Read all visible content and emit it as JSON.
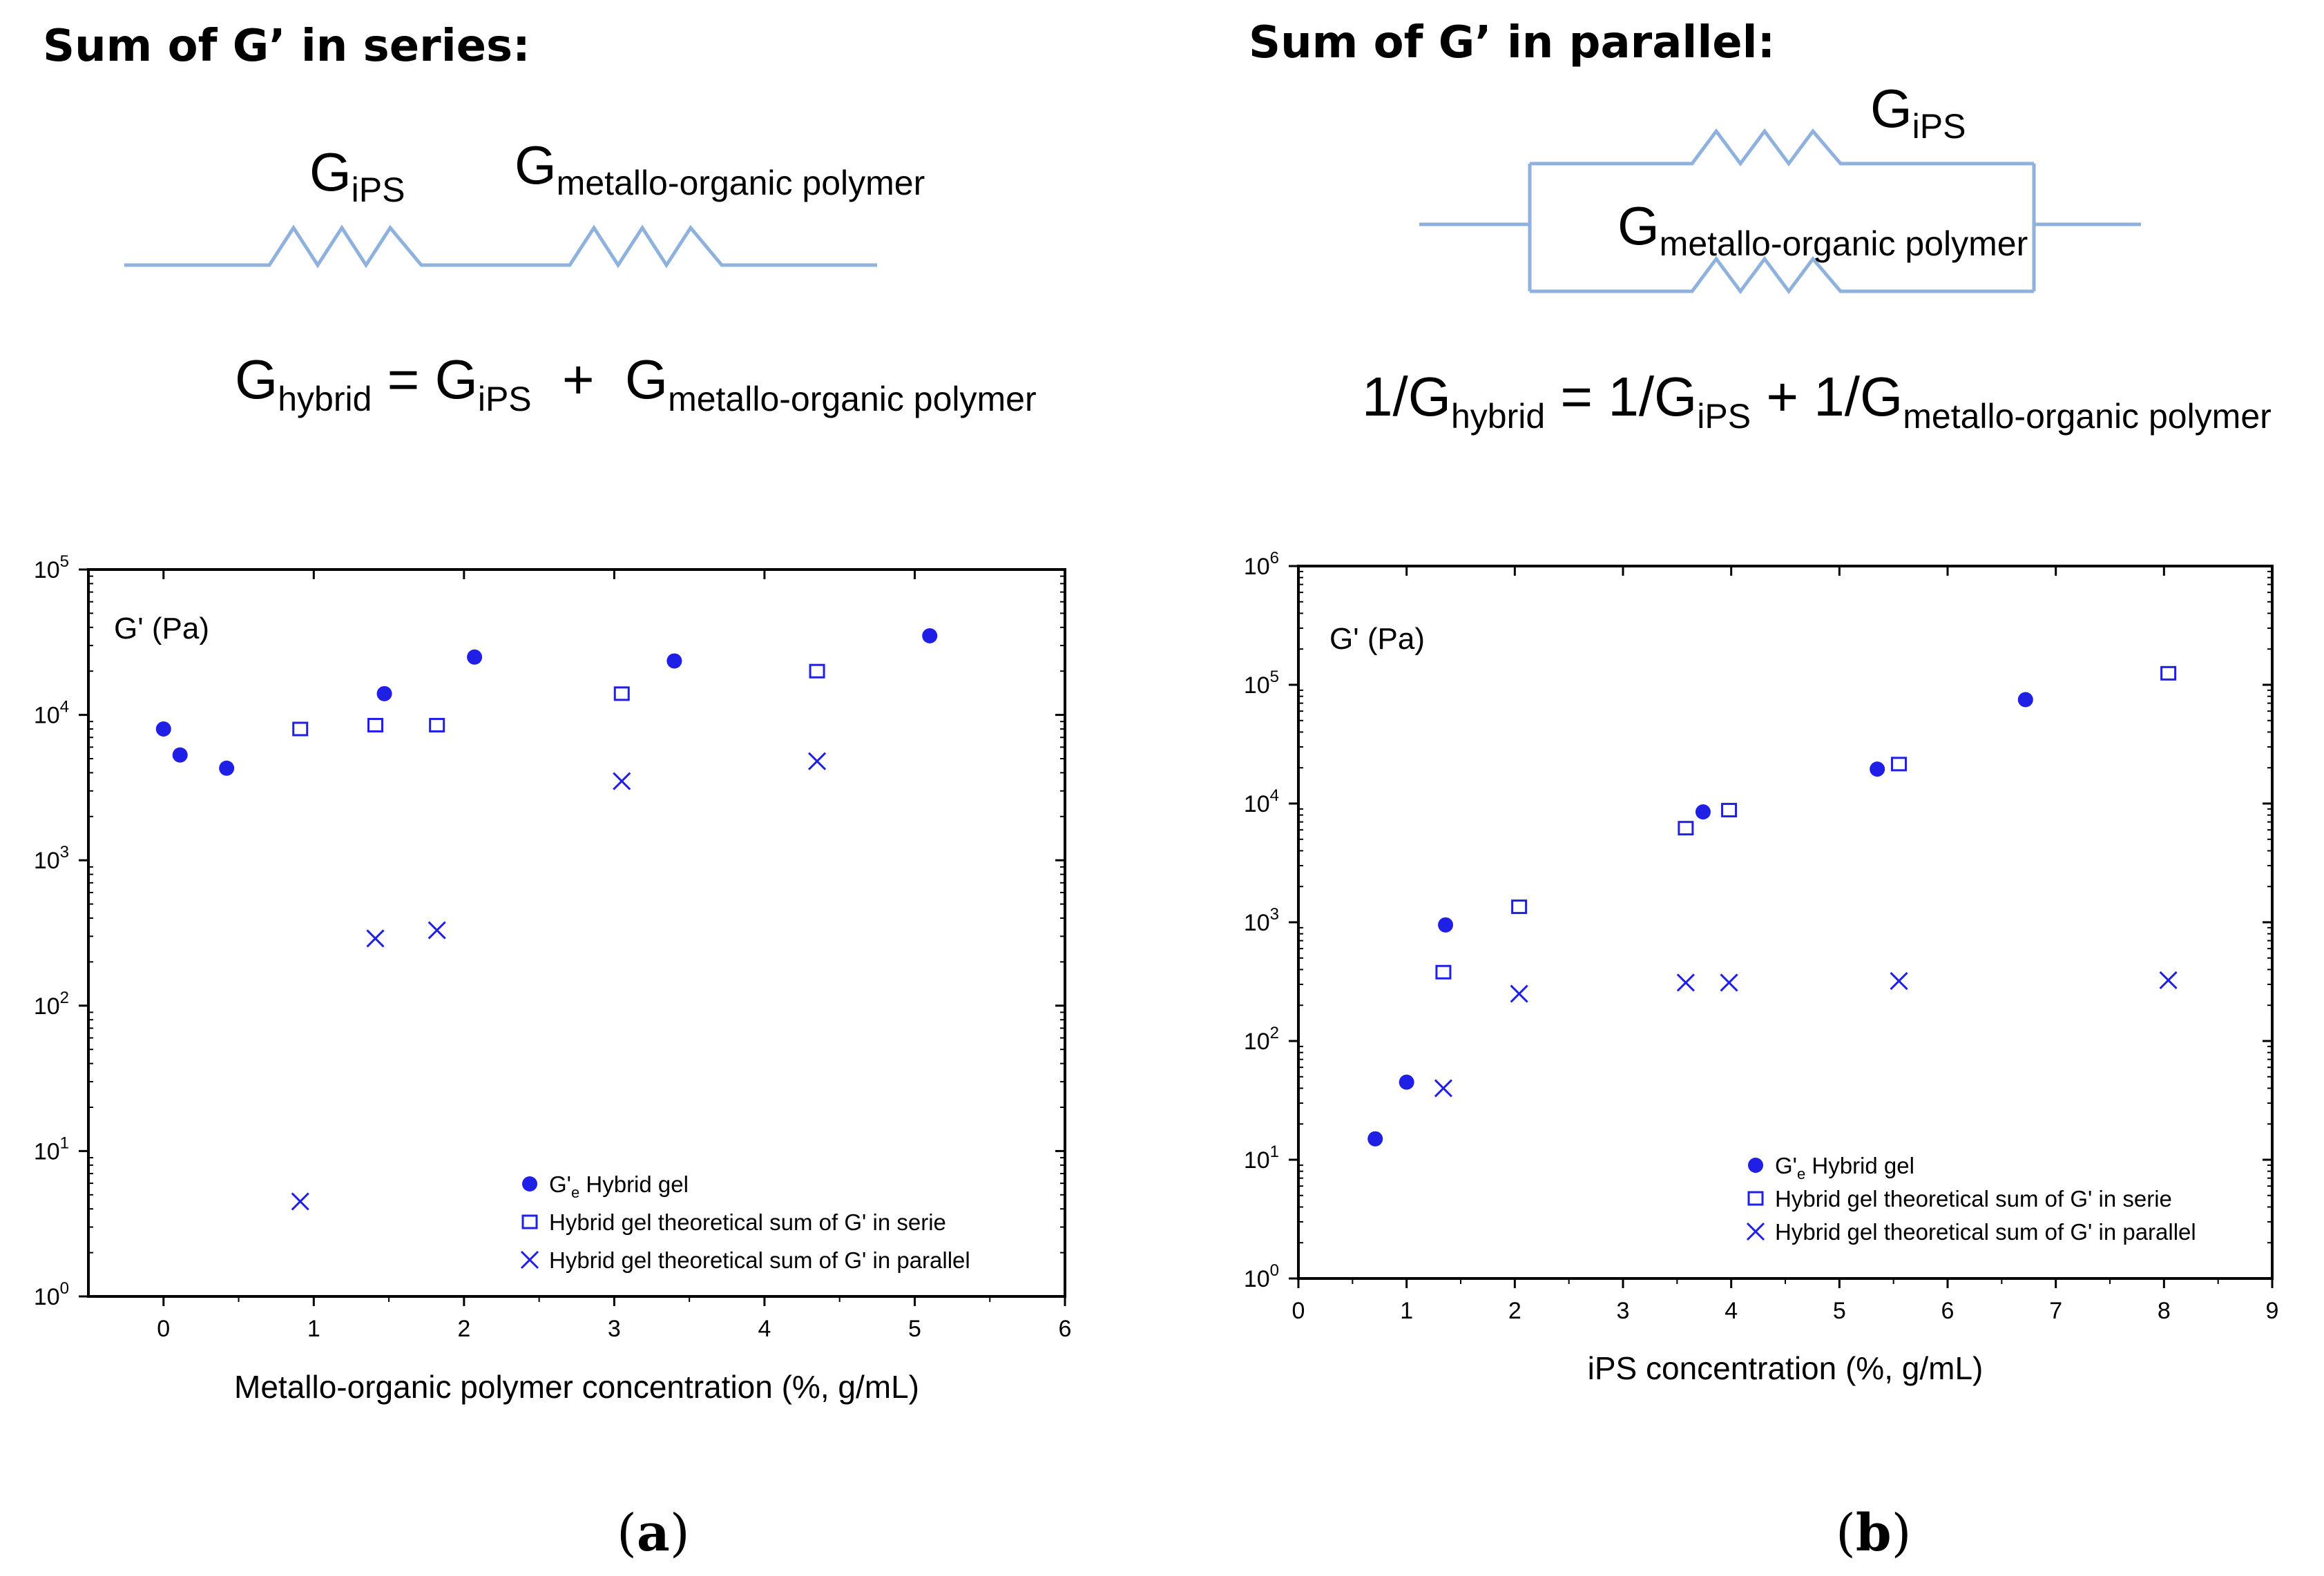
{
  "top": {
    "series": {
      "heading": "Sum of G’ in series:",
      "label_ips_main": "G",
      "label_ips_sub": "iPS",
      "label_mop_main": "G",
      "label_mop_sub": "metallo-organic polymer",
      "eq_lhs_main": "G",
      "eq_lhs_sub": "hybrid",
      "eq_equals": "=",
      "eq_t1_main": "G",
      "eq_t1_sub": "iPS",
      "eq_plus": "+",
      "eq_t2_main": "G",
      "eq_t2_sub": "metallo-organic polymer"
    },
    "parallel": {
      "heading": "Sum of G’ in parallel:",
      "label_ips_main": "G",
      "label_ips_sub": "iPS",
      "label_mop_main": "G",
      "label_mop_sub": "metallo-organic polymer",
      "eq_lhs_main": "1/G",
      "eq_lhs_sub": "hybrid",
      "eq_equals": "=",
      "eq_t1_main": "1/G",
      "eq_t1_sub": "iPS",
      "eq_plus": "+",
      "eq_t2_main": "1/G",
      "eq_t2_sub": "metallo-organic polymer"
    }
  },
  "colors": {
    "marker": "#1f1fe6",
    "resistor": "#8fb1dd",
    "axis": "#000000"
  },
  "chart_data": [
    {
      "type": "scatter",
      "panel_label": "a",
      "ylabel_inside": "G' (Pa)",
      "xlabel": "Metallo-organic polymer concentration (%, g/mL)",
      "xlim": [
        -0.5,
        6
      ],
      "x_ticks": [
        0,
        1,
        2,
        3,
        4,
        5,
        6
      ],
      "y_scale": "log",
      "ylim_exp": [
        0,
        5
      ],
      "legend_position": "bottom-right",
      "series": [
        {
          "name": "G'e Hybrid gel",
          "legend_main": "G'",
          "legend_sub": "e",
          "legend_rest": " Hybrid gel",
          "marker": "filled-circle",
          "x": [
            0.0,
            0.11,
            0.42,
            1.47,
            2.07,
            3.4,
            5.1
          ],
          "y": [
            8000,
            5300,
            4300,
            14000,
            25000,
            23500,
            35000
          ]
        },
        {
          "name": "Hybrid gel theoretical sum of G' in serie",
          "legend_main": "Hybrid gel theoretical sum of G' in serie",
          "marker": "open-square",
          "x": [
            0.91,
            1.41,
            1.82,
            3.05,
            4.35
          ],
          "y": [
            8000,
            8500,
            8500,
            14000,
            20000
          ]
        },
        {
          "name": "Hybrid gel theoretical sum of G' in parallel",
          "legend_main": "Hybrid gel theoretical sum of G' in parallel",
          "marker": "x",
          "x": [
            0.91,
            1.41,
            1.82,
            3.05,
            4.35
          ],
          "y": [
            4.5,
            290,
            330,
            3500,
            4800
          ]
        }
      ]
    },
    {
      "type": "scatter",
      "panel_label": "b",
      "ylabel_inside": "G' (Pa)",
      "xlabel": "iPS concentration (%, g/mL)",
      "xlim": [
        0,
        9
      ],
      "x_ticks": [
        0,
        1,
        2,
        3,
        4,
        5,
        6,
        7,
        8,
        9
      ],
      "y_scale": "log",
      "ylim_exp": [
        0,
        6
      ],
      "legend_position": "bottom-right",
      "series": [
        {
          "name": "G'e Hybrid gel",
          "legend_main": "G'",
          "legend_sub": "e",
          "legend_rest": " Hybrid gel",
          "marker": "filled-circle",
          "x": [
            0.71,
            1.0,
            1.36,
            3.74,
            5.35,
            6.72
          ],
          "y": [
            15,
            45,
            950,
            8500,
            19500,
            75000
          ]
        },
        {
          "name": "Hybrid gel theoretical sum of G' in serie",
          "legend_main": "Hybrid gel theoretical sum of G' in serie",
          "marker": "open-square",
          "x": [
            1.34,
            2.04,
            3.58,
            3.98,
            5.55,
            8.04
          ],
          "y": [
            380,
            1350,
            6200,
            8800,
            21500,
            125000
          ]
        },
        {
          "name": "Hybrid gel theoretical sum of G' in parallel",
          "legend_main": "Hybrid gel theoretical sum of G' in parallel",
          "marker": "x",
          "x": [
            1.34,
            2.04,
            3.58,
            3.98,
            5.55,
            8.04
          ],
          "y": [
            40,
            250,
            310,
            310,
            320,
            325
          ]
        }
      ]
    }
  ]
}
